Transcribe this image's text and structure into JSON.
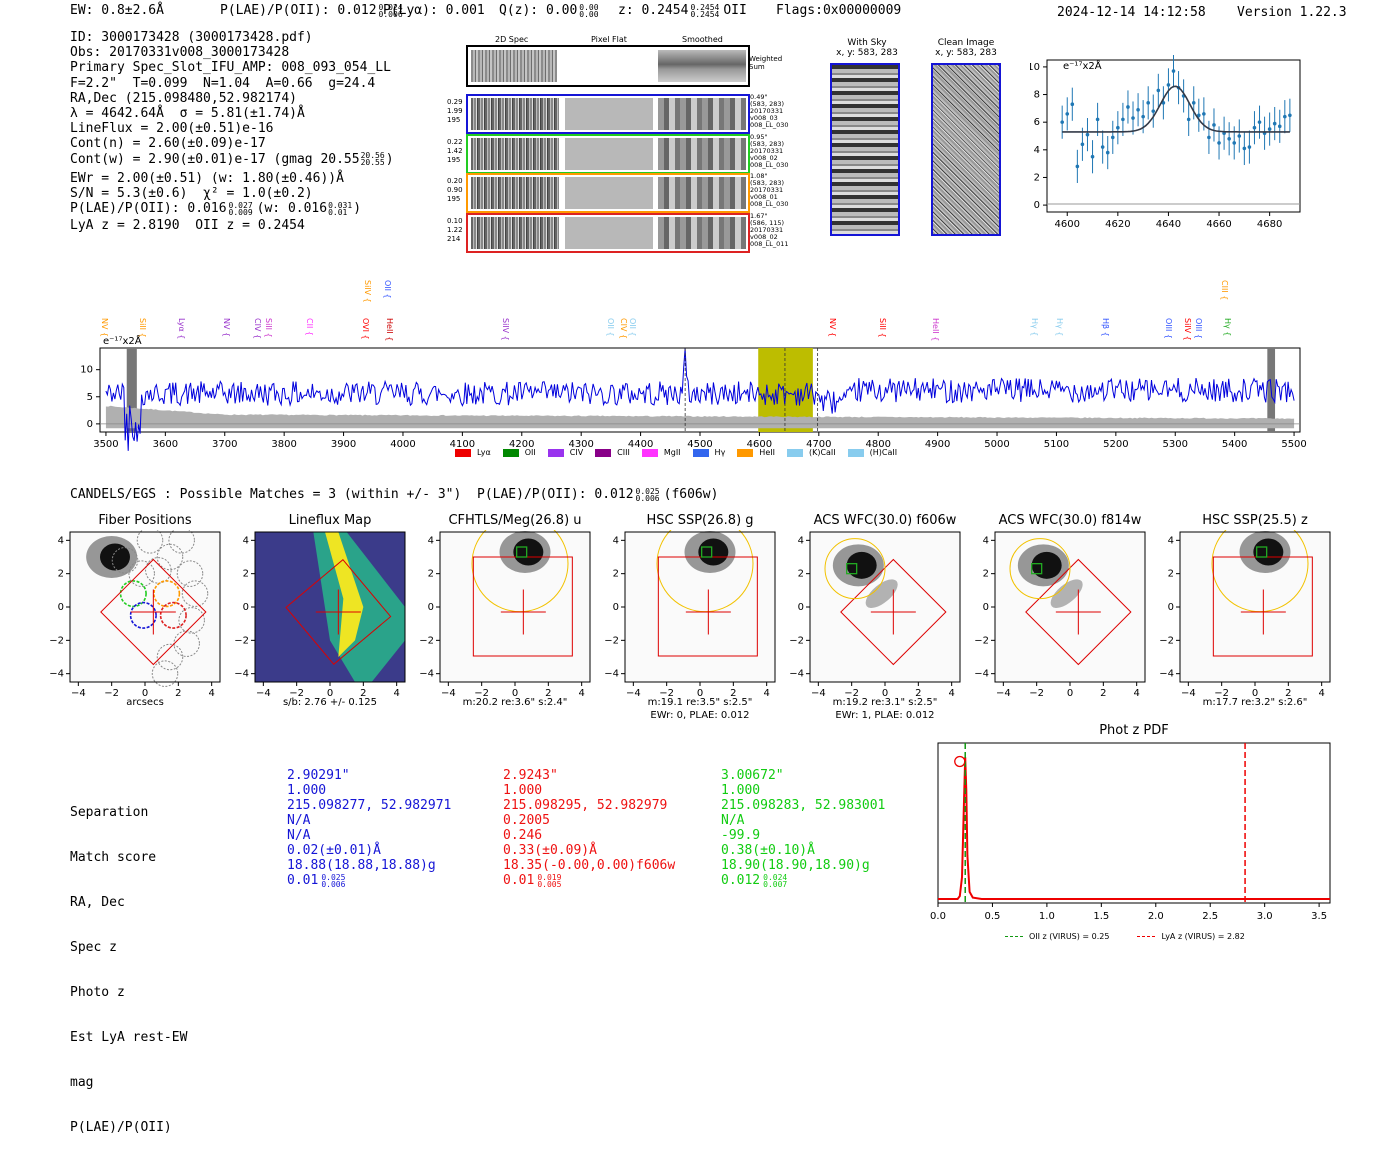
{
  "header": {
    "ew": "EW: 0.8±2.6Å",
    "plae_label": "P(LAE)/P(OII): 0.012",
    "plae_sup": "0.024",
    "plae_sub": "0.006",
    "plya": "P(Lyα): 0.001",
    "qz_label": "Q(z): 0.00",
    "qz_sup": "0.00",
    "qz_sub": "0.00",
    "z_label": "z: 0.2454",
    "z_sup": "0.2454",
    "z_sub": "0.2454",
    "z_line": "OII",
    "flags": "Flags:0x00000009",
    "timestamp": "2024-12-14 14:12:58",
    "version": "Version 1.22.3"
  },
  "info": {
    "lines": [
      "ID: 3000173428 (3000173428.pdf)",
      "Obs: 20170331v008_3000173428",
      "Primary Spec_Slot_IFU_AMP: 008_093_054_LL",
      "F=2.2\"  T=0.099  N=1.04  A=0.66  g=24.4",
      "RA,Dec (215.098480,52.982174)",
      "λ = 4642.64Å  σ = 5.81(±1.74)Å",
      "LineFlux = 2.00(±0.51)e-16",
      "Cont(n) = 2.60(±0.09)e-17",
      "Cont(w) = 2.90(±0.01)e-17 (gmag 20.55",
      "EWr = 2.00(±0.51) (w: 1.80(±0.46))Å",
      "S/N = 5.3(±0.6)  χ² = 1.0(±0.2)",
      "P(LAE)/P(OII): 0.016",
      "LyA z = 2.8190  OII z = 0.2454"
    ],
    "gmag_sup": "20.56",
    "gmag_sub": "20.55",
    "plae_sup": "0.027",
    "plae_sub": "0.009",
    "plae_w": "(w: 0.016",
    "plae_w_sup": "0.031",
    "plae_w_sub": "0.01"
  },
  "cutouts": {
    "col_headers": [
      "2D Spec",
      "Pixel Flat",
      "Smoothed"
    ],
    "weighted_label": "Weighted Sum",
    "rows": [
      {
        "left": [
          "0.29",
          "1.99",
          "195"
        ],
        "right": [
          "0.49\"",
          "(583, 283)",
          "20170331",
          "v008_03",
          "008_LL_030"
        ],
        "color": "#1515d6"
      },
      {
        "left": [
          "0.22",
          "1.42",
          "195"
        ],
        "right": [
          "0.95\"",
          "(583, 283)",
          "20170331",
          "v008_02",
          "008_LL_030"
        ],
        "color": "#22cc22"
      },
      {
        "left": [
          "0.20",
          "0.90",
          "195"
        ],
        "right": [
          "1.08\"",
          "(583, 283)",
          "20170331",
          "v008_01",
          "008_LL_030"
        ],
        "color": "#ff9900"
      },
      {
        "left": [
          "0.10",
          "1.22",
          "214"
        ],
        "right": [
          "1.67\"",
          "(586, 115)",
          "20170331",
          "v008_02",
          "008_LL_011"
        ],
        "color": "#dd2222"
      }
    ],
    "with_sky_title": "With Sky",
    "with_sky_coords": "x, y: 583, 283",
    "clean_title": "Clean Image",
    "clean_coords": "x, y: 583, 283"
  },
  "fit_plot": {
    "unit_label": "e⁻¹⁷x2Å",
    "x_ticks": [
      "4600",
      "4620",
      "4640",
      "4660",
      "4680"
    ],
    "y_ticks": [
      "0",
      "2",
      "4",
      "6",
      "8",
      "10"
    ]
  },
  "spectrum": {
    "unit_label": "e⁻¹⁷x2Å",
    "y_ticks": [
      "0",
      "5",
      "10"
    ],
    "x_ticks": [
      "3500",
      "3600",
      "3700",
      "3800",
      "3900",
      "4000",
      "4100",
      "4200",
      "4300",
      "4400",
      "4500",
      "4600",
      "4700",
      "4800",
      "4900",
      "5000",
      "5100",
      "5200",
      "5300",
      "5400",
      "5500"
    ],
    "line_labels": [
      {
        "name": "NV",
        "x": 109,
        "row": 2,
        "color": "#ff9900"
      },
      {
        "name": "SiII",
        "x": 147,
        "row": 2,
        "color": "#ff9900"
      },
      {
        "name": "Lyα",
        "x": 186,
        "row": 2,
        "color": "#9933cc"
      },
      {
        "name": "NV",
        "x": 231,
        "row": 2,
        "color": "#9933cc"
      },
      {
        "name": "CIV",
        "x": 262,
        "row": 2,
        "color": "#9933cc"
      },
      {
        "name": "SiII",
        "x": 273,
        "row": 2,
        "color": "#cc33cc"
      },
      {
        "name": "CII",
        "x": 314,
        "row": 2,
        "color": "#ff33ff"
      },
      {
        "name": "OVI",
        "x": 370,
        "row": 2,
        "color": "#ff0000"
      },
      {
        "name": "HeII",
        "x": 394,
        "row": 2,
        "color": "#cc0000"
      },
      {
        "name": "SiIV",
        "x": 372,
        "row": 1,
        "color": "#ff9900"
      },
      {
        "name": "OII",
        "x": 392,
        "row": 1,
        "color": "#3355ff"
      },
      {
        "name": "SiIV",
        "x": 510,
        "row": 2,
        "color": "#9933cc"
      },
      {
        "name": "OII",
        "x": 615,
        "row": 2,
        "color": "#88ccee"
      },
      {
        "name": "CIV",
        "x": 628,
        "row": 2,
        "color": "#ff9900"
      },
      {
        "name": "OII",
        "x": 637,
        "row": 2,
        "color": "#88ccee"
      },
      {
        "name": "NV",
        "x": 837,
        "row": 2,
        "color": "#ff0000"
      },
      {
        "name": "SiII",
        "x": 887,
        "row": 2,
        "color": "#ff0000"
      },
      {
        "name": "HeII",
        "x": 940,
        "row": 2,
        "color": "#cc33cc"
      },
      {
        "name": "Hγ",
        "x": 1039,
        "row": 2,
        "color": "#88ccee"
      },
      {
        "name": "Hγ",
        "x": 1064,
        "row": 2,
        "color": "#88ccee"
      },
      {
        "name": "Hβ",
        "x": 1110,
        "row": 2,
        "color": "#3355ff"
      },
      {
        "name": "OIII",
        "x": 1173,
        "row": 2,
        "color": "#3355ff"
      },
      {
        "name": "SiIV",
        "x": 1192,
        "row": 2,
        "color": "#ff0000"
      },
      {
        "name": "OIII",
        "x": 1203,
        "row": 2,
        "color": "#3355ff"
      },
      {
        "name": "Hγ",
        "x": 1232,
        "row": 2,
        "color": "#22aa22"
      },
      {
        "name": "CIII",
        "x": 1229,
        "row": 1,
        "color": "#ff9900"
      }
    ],
    "legend": [
      {
        "name": "Lyα",
        "color": "#ee0000"
      },
      {
        "name": "OII",
        "color": "#008800"
      },
      {
        "name": "CIV",
        "color": "#9933ee"
      },
      {
        "name": "CIII",
        "color": "#880088"
      },
      {
        "name": "MgII",
        "color": "#ff33ff"
      },
      {
        "name": "Hγ",
        "color": "#3366ee"
      },
      {
        "name": "HeII",
        "color": "#ff9900"
      },
      {
        "name": "(K)CaII",
        "color": "#88ccee"
      },
      {
        "name": "(H)CaII",
        "color": "#88ccee"
      }
    ]
  },
  "candels": {
    "title_prefix": "CANDELS/EGS : Possible Matches = 3 (within +/- 3\")  P(LAE)/P(OII): 0.012",
    "sup": "0.025",
    "sub": "0.006",
    "suffix": "(f606w)"
  },
  "panels": [
    {
      "title": "Fiber Positions",
      "caption1": "arcsecs",
      "caption2": ""
    },
    {
      "title": "Lineflux Map",
      "caption1": "s/b: 2.76 +/- 0.125",
      "caption2": ""
    },
    {
      "title": "CFHTLS/Meg(26.8) u",
      "caption1": "m:20.2  re:3.6\"  s:2.4\"",
      "caption2": ""
    },
    {
      "title": "HSC SSP(26.8) g",
      "caption1": "m:19.1  re:3.5\"  s:2.5\"",
      "caption2": "EWr: 0, PLAE: 0.012"
    },
    {
      "title": "ACS WFC(30.0) f606w",
      "caption1": "m:19.2  re:3.1\"  s:2.5\"",
      "caption2": "EWr: 1, PLAE: 0.012"
    },
    {
      "title": "ACS WFC(30.0) f814w",
      "caption1": "",
      "caption2": ""
    },
    {
      "title": "HSC SSP(25.5) z",
      "caption1": "m:17.7  re:3.2\"  s:2.6\"",
      "caption2": ""
    }
  ],
  "panel_axis": {
    "x_ticks": [
      "−4",
      "−2",
      "0",
      "2",
      "4"
    ],
    "y_ticks": [
      "4",
      "2",
      "0",
      "−2",
      "−4"
    ]
  },
  "matches": {
    "labels": [
      "Separation",
      "Match score",
      "RA, Dec",
      "Spec z",
      "Photo z",
      "Est LyA rest-EW",
      "mag",
      "P(LAE)/P(OII)"
    ],
    "columns": [
      {
        "color": "#1515d6",
        "values": [
          "2.90291\"",
          "1.000",
          "215.098277, 52.982971",
          "N/A",
          "N/A",
          "0.02(±0.01)Å",
          "18.88(18.88,18.88)g",
          "0.01"
        ],
        "plae_sup": "0.025",
        "plae_sub": "0.006"
      },
      {
        "color": "#ee1111",
        "values": [
          "2.9243\"",
          "1.000",
          "215.098295, 52.982979",
          "0.2005",
          "0.246",
          "0.33(±0.09)Å",
          "18.35(-0.00,0.00)f606w",
          "0.01"
        ],
        "plae_sup": "0.019",
        "plae_sub": "0.005"
      },
      {
        "color": "#11cc11",
        "values": [
          "3.00672\"",
          "1.000",
          "215.098283, 52.983001",
          "N/A",
          "-99.9",
          "0.38(±0.10)Å",
          "18.90(18.90,18.90)g",
          "0.012"
        ],
        "plae_sup": "0.024",
        "plae_sub": "0.007"
      }
    ]
  },
  "chart_data": {
    "type": "line",
    "title": "Phot z PDF",
    "x_ticks": [
      "0.0",
      "0.5",
      "1.0",
      "1.5",
      "2.0",
      "2.5",
      "3.0",
      "3.5"
    ],
    "xlim": [
      0.0,
      3.6
    ],
    "ylim": [
      0,
      1.05
    ],
    "series": [
      {
        "name": "Phot z PDF",
        "color": "#ee0000",
        "x": [
          0.0,
          0.18,
          0.2,
          0.22,
          0.24,
          0.25,
          0.26,
          0.27,
          0.29,
          0.32,
          0.4,
          3.6
        ],
        "y": [
          0.0,
          0.0,
          0.02,
          0.15,
          0.7,
          0.98,
          0.75,
          0.3,
          0.05,
          0.01,
          0.0,
          0.0
        ]
      }
    ],
    "vlines": [
      {
        "label": "OII z (VIRUS) = 0.25",
        "x": 0.25,
        "color": "#119911"
      },
      {
        "label": "LyA z (VIRUS) = 2.82",
        "x": 2.82,
        "color": "#ee0000"
      }
    ],
    "marker_label": "○",
    "marker_x": 0.2
  }
}
